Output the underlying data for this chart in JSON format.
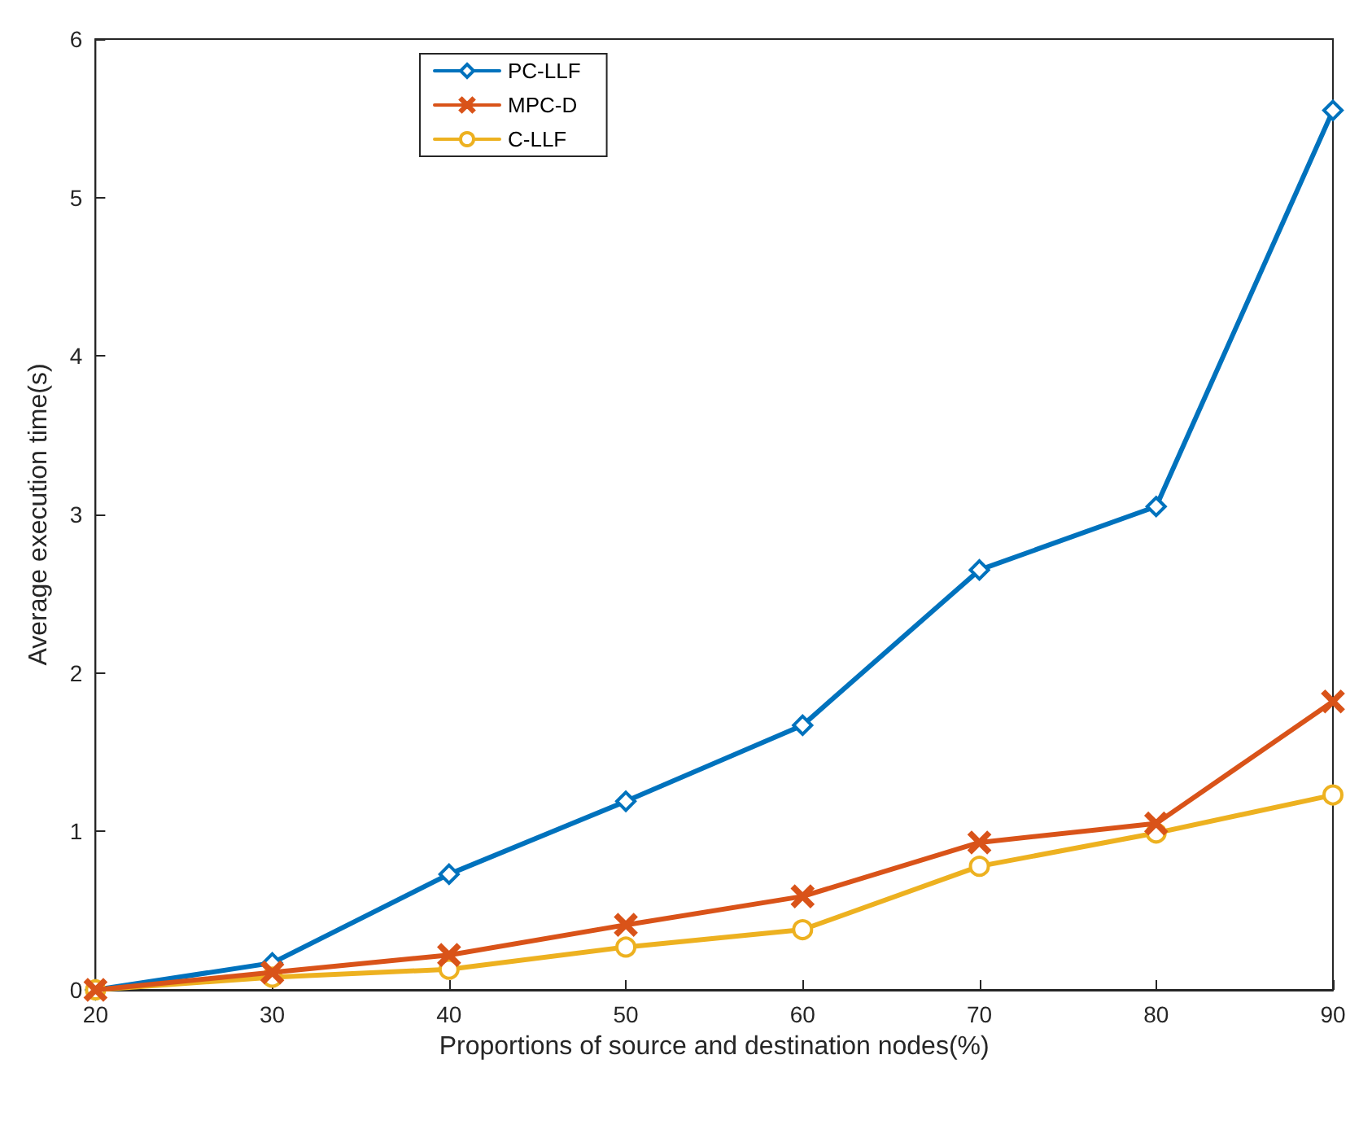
{
  "chart_data": {
    "type": "line",
    "xlabel": "Proportions of source and destination nodes(%)",
    "ylabel": "Average execution time(s)",
    "x": [
      20,
      30,
      40,
      50,
      60,
      70,
      80,
      90
    ],
    "series": [
      {
        "name": "PC-LLF",
        "color": "#0072bd",
        "marker": "diamond",
        "values": [
          0,
          0.17,
          0.73,
          1.19,
          1.67,
          2.65,
          3.05,
          5.55
        ]
      },
      {
        "name": "MPC-D",
        "color": "#d95319",
        "marker": "cross",
        "values": [
          0,
          0.11,
          0.22,
          0.41,
          0.59,
          0.93,
          1.05,
          1.82
        ]
      },
      {
        "name": "C-LLF",
        "color": "#edb120",
        "marker": "circle",
        "values": [
          0,
          0.08,
          0.13,
          0.27,
          0.38,
          0.78,
          0.99,
          1.23
        ]
      }
    ],
    "xlim": [
      20,
      90
    ],
    "xticks": [
      20,
      30,
      40,
      50,
      60,
      70,
      80,
      90
    ],
    "ylim": [
      0,
      6
    ],
    "yticks": [
      0,
      1,
      2,
      3,
      4,
      5,
      6
    ],
    "grid": false,
    "legend": "top left",
    "line_style": "solid"
  }
}
